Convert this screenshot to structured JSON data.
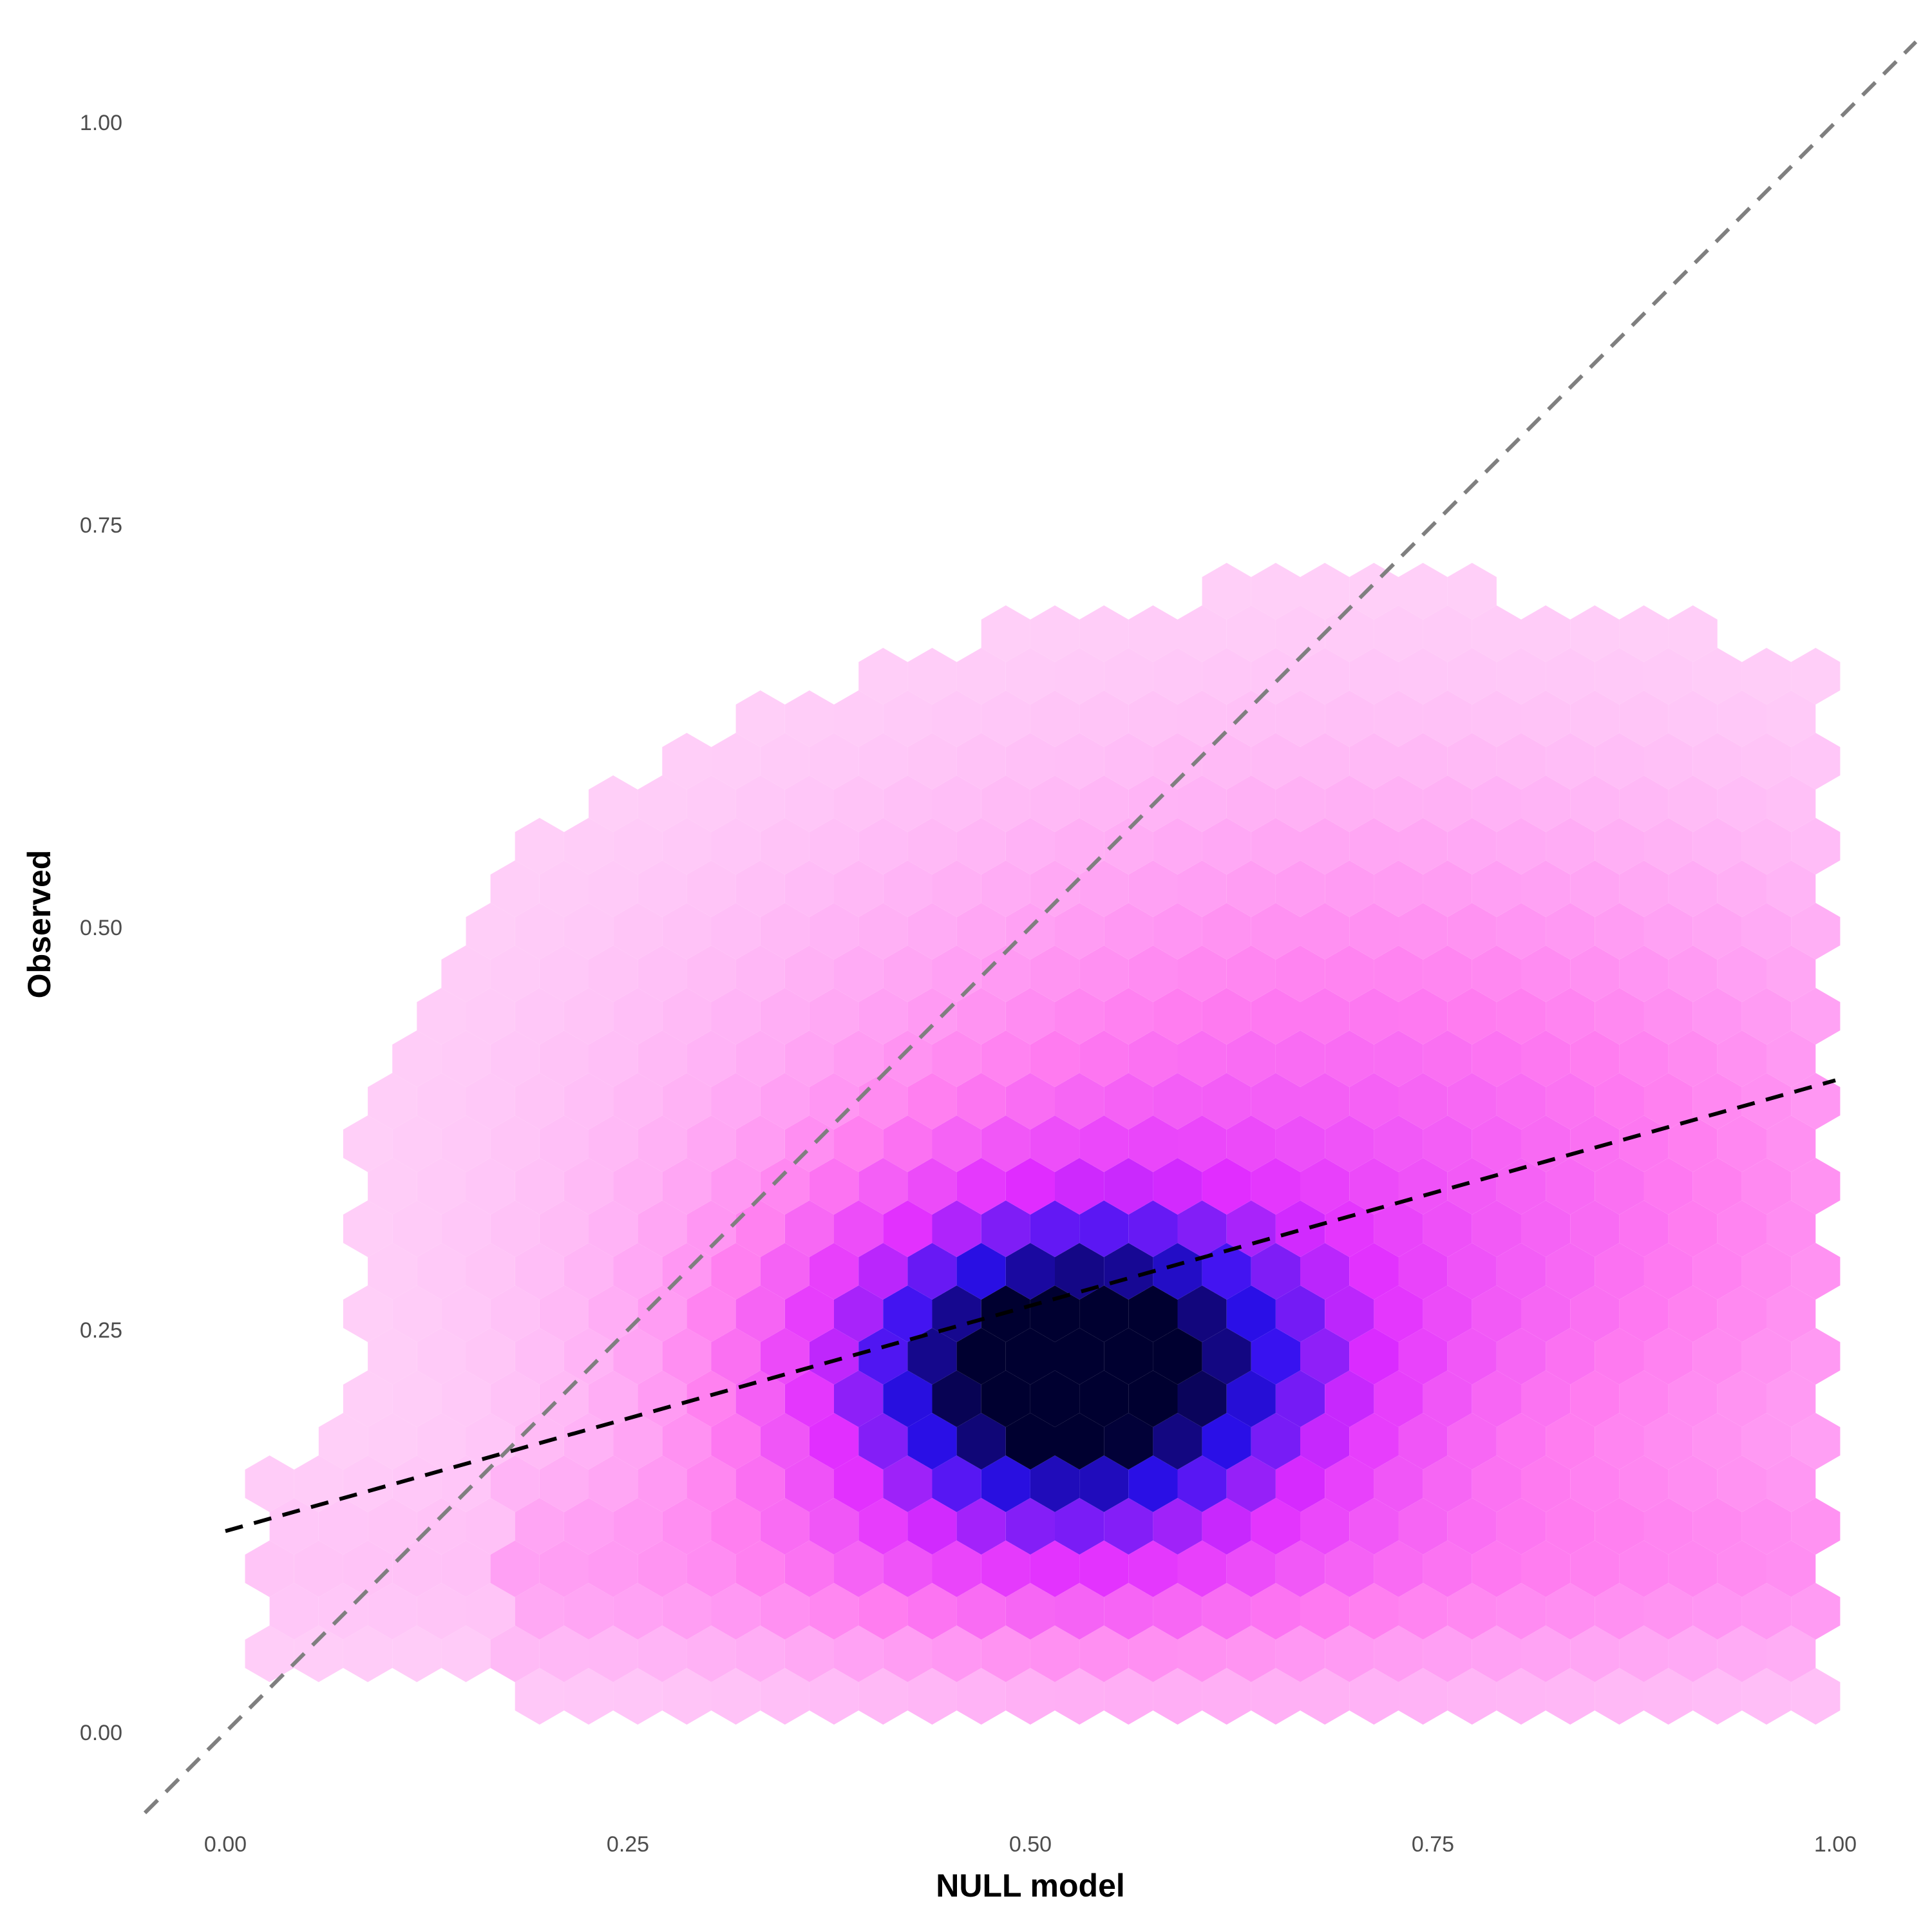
{
  "chart_data": {
    "type": "hexbin",
    "xlabel": "NULL model",
    "ylabel": "Observed",
    "xlim": [
      -0.05,
      1.05
    ],
    "ylim": [
      -0.05,
      1.05
    ],
    "x_ticks": [
      "0.00",
      "0.25",
      "0.50",
      "0.75",
      "1.00"
    ],
    "y_ticks": [
      "0.00",
      "0.25",
      "0.50",
      "0.75",
      "1.00"
    ],
    "grid": false,
    "legend": "none",
    "color_scale": {
      "low": "#ffe8fb",
      "mid_low": "#ff7cf0",
      "mid": "#e02cff",
      "mid_high": "#2c10ef",
      "high": "#000030"
    },
    "density_peak": {
      "x": 0.52,
      "y": 0.2
    },
    "reference_lines": [
      {
        "name": "identity",
        "style": "dashed",
        "color": "#7f7f7f",
        "x": [
          -0.05,
          1.05
        ],
        "y": [
          -0.05,
          1.05
        ]
      },
      {
        "name": "fit",
        "style": "dashed",
        "color": "#000000",
        "x": [
          0.0,
          1.0
        ],
        "y": [
          0.125,
          0.405
        ]
      }
    ]
  }
}
